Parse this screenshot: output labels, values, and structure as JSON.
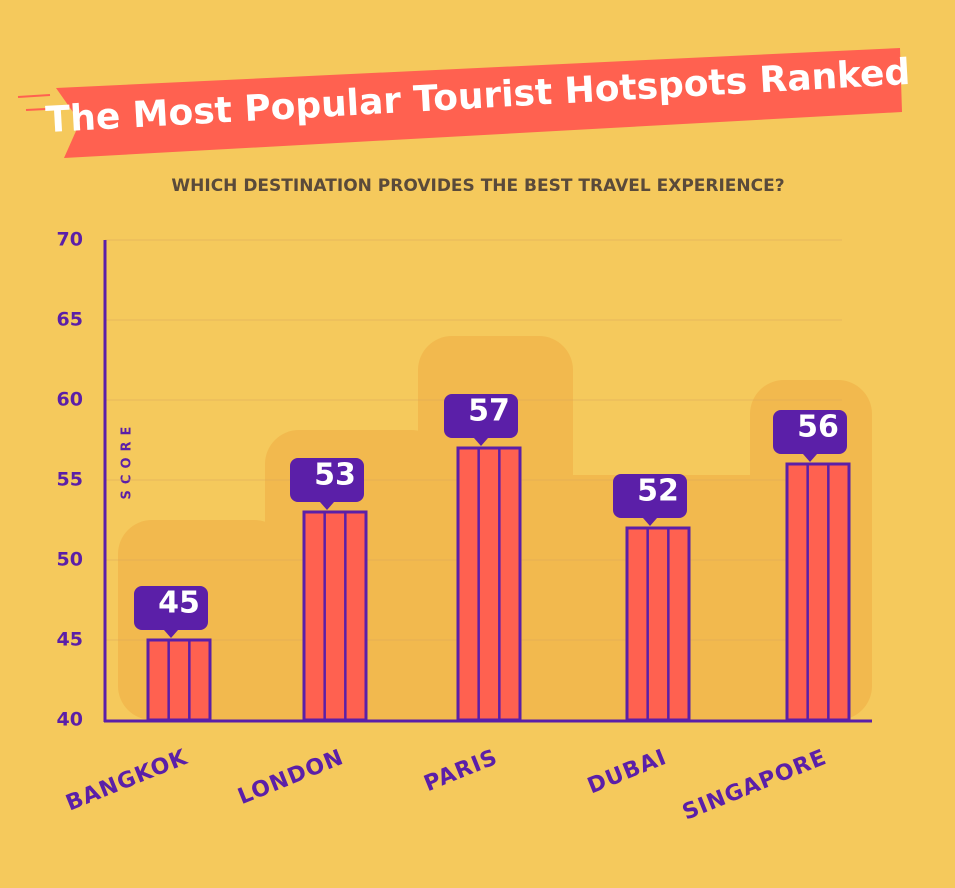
{
  "chart_data": {
    "type": "bar",
    "title": "The Most Popular Tourist Hotspots Ranked",
    "subtitle": "WHICH DESTINATION PROVIDES THE BEST TRAVEL EXPERIENCE?",
    "y_label": "SCORE",
    "categories": [
      "BANGKOK",
      "LONDON",
      "PARIS",
      "DUBAI",
      "SINGAPORE"
    ],
    "values": [
      45,
      53,
      57,
      52,
      56
    ],
    "color": "#ff6150",
    "ylim": [
      40,
      70
    ],
    "yticks": [
      40,
      45,
      50,
      55,
      60,
      65,
      70
    ],
    "grid": true
  }
}
